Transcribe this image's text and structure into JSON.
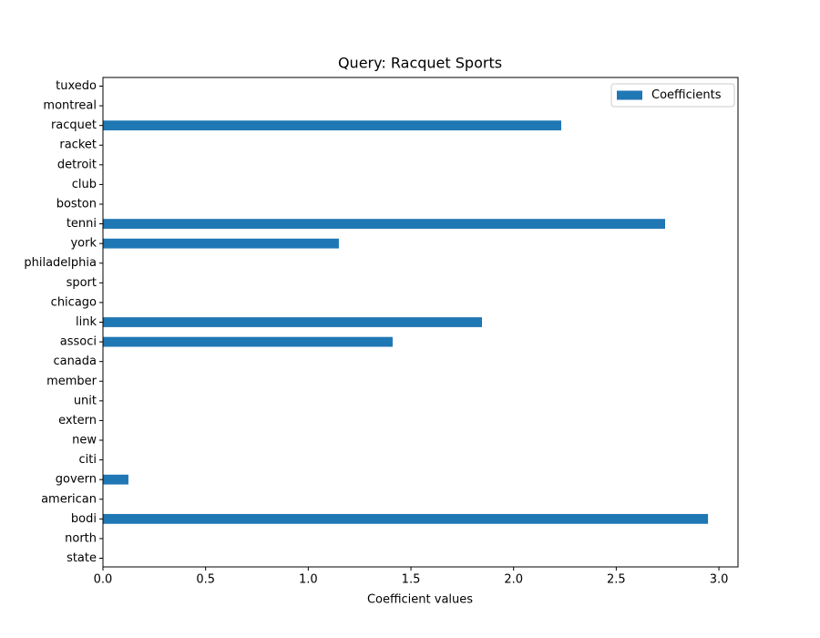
{
  "chart_data": {
    "type": "barh",
    "title": "Query: Racquet Sports",
    "xlabel": "Coefficient values",
    "categories": [
      "state",
      "north",
      "bodi",
      "american",
      "govern",
      "citi",
      "new",
      "extern",
      "unit",
      "member",
      "canada",
      "associ",
      "link",
      "chicago",
      "sport",
      "philadelphia",
      "york",
      "tenni",
      "boston",
      "club",
      "detroit",
      "racket",
      "racquet",
      "montreal",
      "tuxedo"
    ],
    "series": [
      {
        "name": "Coefficients",
        "color": "#1f77b4",
        "values": [
          0,
          0,
          2.947,
          0,
          0.124,
          0,
          0,
          0,
          0,
          0,
          0,
          1.411,
          1.846,
          0,
          0,
          0,
          1.149,
          2.738,
          0,
          0,
          0,
          0,
          2.232,
          0,
          0
        ]
      }
    ],
    "xlim": [
      0,
      3.093
    ],
    "xticks": [
      {
        "value": 0,
        "label": "0.0"
      },
      0.5,
      {
        "value": 1,
        "label": "1.0"
      },
      1.5,
      {
        "value": 2,
        "label": "2.0"
      },
      2.5,
      {
        "value": 3,
        "label": "3.0"
      }
    ],
    "legend": "upper right"
  }
}
